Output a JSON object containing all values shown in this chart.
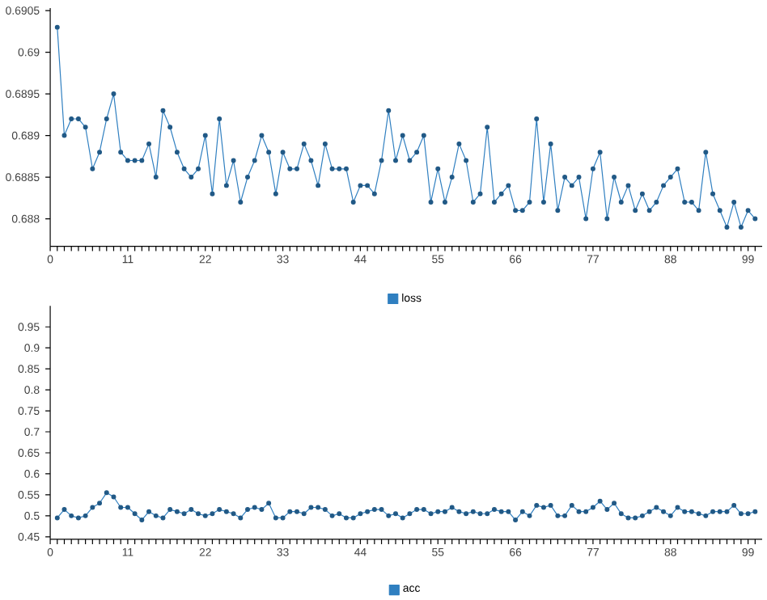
{
  "chart_data": [
    {
      "type": "line",
      "x": [
        1,
        2,
        3,
        4,
        5,
        6,
        7,
        8,
        9,
        10,
        11,
        12,
        13,
        14,
        15,
        16,
        17,
        18,
        19,
        20,
        21,
        22,
        23,
        24,
        25,
        26,
        27,
        28,
        29,
        30,
        31,
        32,
        33,
        34,
        35,
        36,
        37,
        38,
        39,
        40,
        41,
        42,
        43,
        44,
        45,
        46,
        47,
        48,
        49,
        50,
        51,
        52,
        53,
        54,
        55,
        56,
        57,
        58,
        59,
        60,
        61,
        62,
        63,
        64,
        65,
        66,
        67,
        68,
        69,
        70,
        71,
        72,
        73,
        74,
        75,
        76,
        77,
        78,
        79,
        80,
        81,
        82,
        83,
        84,
        85,
        86,
        87,
        88,
        89,
        90,
        91,
        92,
        93,
        94,
        95,
        96,
        97,
        98,
        99,
        100
      ],
      "series": [
        {
          "name": "loss",
          "color": "#2f7fc0",
          "values": [
            0.6903,
            0.689,
            0.6892,
            0.6892,
            0.6891,
            0.6886,
            0.6888,
            0.6892,
            0.6895,
            0.6888,
            0.6887,
            0.6887,
            0.6887,
            0.6889,
            0.6885,
            0.6893,
            0.6891,
            0.6888,
            0.6886,
            0.6885,
            0.6886,
            0.689,
            0.6883,
            0.6892,
            0.6884,
            0.6887,
            0.6882,
            0.6885,
            0.6887,
            0.689,
            0.6888,
            0.6883,
            0.6888,
            0.6886,
            0.6886,
            0.6889,
            0.6887,
            0.6884,
            0.6889,
            0.6886,
            0.6886,
            0.6886,
            0.6882,
            0.6884,
            0.6884,
            0.6883,
            0.6887,
            0.6893,
            0.6887,
            0.689,
            0.6887,
            0.6888,
            0.689,
            0.6882,
            0.6886,
            0.6882,
            0.6885,
            0.6889,
            0.6887,
            0.6882,
            0.6883,
            0.6891,
            0.6882,
            0.6883,
            0.6884,
            0.6881,
            0.6881,
            0.6882,
            0.6892,
            0.6882,
            0.6889,
            0.6881,
            0.6885,
            0.6884,
            0.6885,
            0.688,
            0.6886,
            0.6888,
            0.688,
            0.6885,
            0.6882,
            0.6884,
            0.6881,
            0.6883,
            0.6881,
            0.6882,
            0.6884,
            0.6885,
            0.6886,
            0.6882,
            0.6882,
            0.6881,
            0.6888,
            0.6883,
            0.6881,
            0.6879,
            0.6882,
            0.6879,
            0.6881,
            0.688
          ]
        }
      ],
      "xlim": [
        0,
        101
      ],
      "ylim": [
        0.68767,
        0.69053
      ],
      "xticks": [
        0,
        {
          "value": 1,
          "label": null
        },
        {
          "value": 2,
          "label": null
        },
        {
          "value": 3,
          "label": null
        },
        {
          "value": 4,
          "label": null
        },
        {
          "value": 5,
          "label": null
        },
        {
          "value": 6,
          "label": null
        },
        {
          "value": 7,
          "label": null
        },
        {
          "value": 8,
          "label": null
        },
        {
          "value": 9,
          "label": null
        },
        {
          "value": 10,
          "label": null
        },
        11,
        {
          "value": 12,
          "label": null
        },
        {
          "value": 13,
          "label": null
        },
        {
          "value": 14,
          "label": null
        },
        {
          "value": 15,
          "label": null
        },
        {
          "value": 16,
          "label": null
        },
        {
          "value": 17,
          "label": null
        },
        {
          "value": 18,
          "label": null
        },
        {
          "value": 19,
          "label": null
        },
        {
          "value": 20,
          "label": null
        },
        {
          "value": 21,
          "label": null
        },
        22,
        {
          "value": 23,
          "label": null
        },
        {
          "value": 24,
          "label": null
        },
        {
          "value": 25,
          "label": null
        },
        {
          "value": 26,
          "label": null
        },
        {
          "value": 27,
          "label": null
        },
        {
          "value": 28,
          "label": null
        },
        {
          "value": 29,
          "label": null
        },
        {
          "value": 30,
          "label": null
        },
        {
          "value": 31,
          "label": null
        },
        {
          "value": 32,
          "label": null
        },
        33,
        {
          "value": 34,
          "label": null
        },
        {
          "value": 35,
          "label": null
        },
        {
          "value": 36,
          "label": null
        },
        {
          "value": 37,
          "label": null
        },
        {
          "value": 38,
          "label": null
        },
        {
          "value": 39,
          "label": null
        },
        {
          "value": 40,
          "label": null
        },
        {
          "value": 41,
          "label": null
        },
        {
          "value": 42,
          "label": null
        },
        {
          "value": 43,
          "label": null
        },
        44,
        {
          "value": 45,
          "label": null
        },
        {
          "value": 46,
          "label": null
        },
        {
          "value": 47,
          "label": null
        },
        {
          "value": 48,
          "label": null
        },
        {
          "value": 49,
          "label": null
        },
        {
          "value": 50,
          "label": null
        },
        {
          "value": 51,
          "label": null
        },
        {
          "value": 52,
          "label": null
        },
        {
          "value": 53,
          "label": null
        },
        {
          "value": 54,
          "label": null
        },
        55,
        {
          "value": 56,
          "label": null
        },
        {
          "value": 57,
          "label": null
        },
        {
          "value": 58,
          "label": null
        },
        {
          "value": 59,
          "label": null
        },
        {
          "value": 60,
          "label": null
        },
        {
          "value": 61,
          "label": null
        },
        {
          "value": 62,
          "label": null
        },
        {
          "value": 63,
          "label": null
        },
        {
          "value": 64,
          "label": null
        },
        {
          "value": 65,
          "label": null
        },
        66,
        {
          "value": 67,
          "label": null
        },
        {
          "value": 68,
          "label": null
        },
        {
          "value": 69,
          "label": null
        },
        {
          "value": 70,
          "label": null
        },
        {
          "value": 71,
          "label": null
        },
        {
          "value": 72,
          "label": null
        },
        {
          "value": 73,
          "label": null
        },
        {
          "value": 74,
          "label": null
        },
        {
          "value": 75,
          "label": null
        },
        {
          "value": 76,
          "label": null
        },
        77,
        {
          "value": 78,
          "label": null
        },
        {
          "value": 79,
          "label": null
        },
        {
          "value": 80,
          "label": null
        },
        {
          "value": 81,
          "label": null
        },
        {
          "value": 82,
          "label": null
        },
        {
          "value": 83,
          "label": null
        },
        {
          "value": 84,
          "label": null
        },
        {
          "value": 85,
          "label": null
        },
        {
          "value": 86,
          "label": null
        },
        {
          "value": 87,
          "label": null
        },
        88,
        {
          "value": 89,
          "label": null
        },
        {
          "value": 90,
          "label": null
        },
        {
          "value": 91,
          "label": null
        },
        {
          "value": 92,
          "label": null
        },
        {
          "value": 93,
          "label": null
        },
        {
          "value": 94,
          "label": null
        },
        {
          "value": 95,
          "label": null
        },
        {
          "value": 96,
          "label": null
        },
        {
          "value": 97,
          "label": null
        },
        {
          "value": 98,
          "label": null
        },
        99,
        {
          "value": 100,
          "label": null
        }
      ],
      "yticks": [
        0.688,
        0.6885,
        0.689,
        0.6895,
        0.69,
        0.6905
      ],
      "legend": "bottom",
      "marker": "circle",
      "grid": false
    },
    {
      "type": "line",
      "x": [
        1,
        2,
        3,
        4,
        5,
        6,
        7,
        8,
        9,
        10,
        11,
        12,
        13,
        14,
        15,
        16,
        17,
        18,
        19,
        20,
        21,
        22,
        23,
        24,
        25,
        26,
        27,
        28,
        29,
        30,
        31,
        32,
        33,
        34,
        35,
        36,
        37,
        38,
        39,
        40,
        41,
        42,
        43,
        44,
        45,
        46,
        47,
        48,
        49,
        50,
        51,
        52,
        53,
        54,
        55,
        56,
        57,
        58,
        59,
        60,
        61,
        62,
        63,
        64,
        65,
        66,
        67,
        68,
        69,
        70,
        71,
        72,
        73,
        74,
        75,
        76,
        77,
        78,
        79,
        80,
        81,
        82,
        83,
        84,
        85,
        86,
        87,
        88,
        89,
        90,
        91,
        92,
        93,
        94,
        95,
        96,
        97,
        98,
        99,
        100
      ],
      "series": [
        {
          "name": "acc",
          "color": "#2f7fc0",
          "values": [
            0.495,
            0.515,
            0.5,
            0.495,
            0.5,
            0.52,
            0.53,
            0.555,
            0.545,
            0.52,
            0.52,
            0.505,
            0.49,
            0.51,
            0.5,
            0.495,
            0.515,
            0.51,
            0.505,
            0.515,
            0.505,
            0.5,
            0.505,
            0.515,
            0.51,
            0.505,
            0.495,
            0.515,
            0.52,
            0.515,
            0.53,
            0.495,
            0.495,
            0.51,
            0.51,
            0.505,
            0.52,
            0.52,
            0.515,
            0.5,
            0.505,
            0.495,
            0.495,
            0.505,
            0.51,
            0.515,
            0.515,
            0.5,
            0.505,
            0.495,
            0.505,
            0.515,
            0.515,
            0.505,
            0.51,
            0.51,
            0.52,
            0.51,
            0.505,
            0.51,
            0.505,
            0.505,
            0.515,
            0.51,
            0.51,
            0.49,
            0.51,
            0.5,
            0.525,
            0.52,
            0.525,
            0.5,
            0.5,
            0.525,
            0.51,
            0.51,
            0.52,
            0.535,
            0.515,
            0.53,
            0.505,
            0.495,
            0.495,
            0.5,
            0.51,
            0.52,
            0.51,
            0.5,
            0.52,
            0.51,
            0.51,
            0.505,
            0.5,
            0.51,
            0.51,
            0.51,
            0.525,
            0.505,
            0.505,
            0.51
          ]
        }
      ],
      "xlim": [
        0,
        101
      ],
      "ylim": [
        0.444,
        1.0
      ],
      "xticks": [
        0,
        {
          "value": 1,
          "label": null
        },
        {
          "value": 2,
          "label": null
        },
        {
          "value": 3,
          "label": null
        },
        {
          "value": 4,
          "label": null
        },
        {
          "value": 5,
          "label": null
        },
        {
          "value": 6,
          "label": null
        },
        {
          "value": 7,
          "label": null
        },
        {
          "value": 8,
          "label": null
        },
        {
          "value": 9,
          "label": null
        },
        {
          "value": 10,
          "label": null
        },
        11,
        {
          "value": 12,
          "label": null
        },
        {
          "value": 13,
          "label": null
        },
        {
          "value": 14,
          "label": null
        },
        {
          "value": 15,
          "label": null
        },
        {
          "value": 16,
          "label": null
        },
        {
          "value": 17,
          "label": null
        },
        {
          "value": 18,
          "label": null
        },
        {
          "value": 19,
          "label": null
        },
        {
          "value": 20,
          "label": null
        },
        {
          "value": 21,
          "label": null
        },
        22,
        {
          "value": 23,
          "label": null
        },
        {
          "value": 24,
          "label": null
        },
        {
          "value": 25,
          "label": null
        },
        {
          "value": 26,
          "label": null
        },
        {
          "value": 27,
          "label": null
        },
        {
          "value": 28,
          "label": null
        },
        {
          "value": 29,
          "label": null
        },
        {
          "value": 30,
          "label": null
        },
        {
          "value": 31,
          "label": null
        },
        {
          "value": 32,
          "label": null
        },
        33,
        {
          "value": 34,
          "label": null
        },
        {
          "value": 35,
          "label": null
        },
        {
          "value": 36,
          "label": null
        },
        {
          "value": 37,
          "label": null
        },
        {
          "value": 38,
          "label": null
        },
        {
          "value": 39,
          "label": null
        },
        {
          "value": 40,
          "label": null
        },
        {
          "value": 41,
          "label": null
        },
        {
          "value": 42,
          "label": null
        },
        {
          "value": 43,
          "label": null
        },
        44,
        {
          "value": 45,
          "label": null
        },
        {
          "value": 46,
          "label": null
        },
        {
          "value": 47,
          "label": null
        },
        {
          "value": 48,
          "label": null
        },
        {
          "value": 49,
          "label": null
        },
        {
          "value": 50,
          "label": null
        },
        {
          "value": 51,
          "label": null
        },
        {
          "value": 52,
          "label": null
        },
        {
          "value": 53,
          "label": null
        },
        {
          "value": 54,
          "label": null
        },
        55,
        {
          "value": 56,
          "label": null
        },
        {
          "value": 57,
          "label": null
        },
        {
          "value": 58,
          "label": null
        },
        {
          "value": 59,
          "label": null
        },
        {
          "value": 60,
          "label": null
        },
        {
          "value": 61,
          "label": null
        },
        {
          "value": 62,
          "label": null
        },
        {
          "value": 63,
          "label": null
        },
        {
          "value": 64,
          "label": null
        },
        {
          "value": 65,
          "label": null
        },
        66,
        {
          "value": 67,
          "label": null
        },
        {
          "value": 68,
          "label": null
        },
        {
          "value": 69,
          "label": null
        },
        {
          "value": 70,
          "label": null
        },
        {
          "value": 71,
          "label": null
        },
        {
          "value": 72,
          "label": null
        },
        {
          "value": 73,
          "label": null
        },
        {
          "value": 74,
          "label": null
        },
        {
          "value": 75,
          "label": null
        },
        {
          "value": 76,
          "label": null
        },
        77,
        {
          "value": 78,
          "label": null
        },
        {
          "value": 79,
          "label": null
        },
        {
          "value": 80,
          "label": null
        },
        {
          "value": 81,
          "label": null
        },
        {
          "value": 82,
          "label": null
        },
        {
          "value": 83,
          "label": null
        },
        {
          "value": 84,
          "label": null
        },
        {
          "value": 85,
          "label": null
        },
        {
          "value": 86,
          "label": null
        },
        {
          "value": 87,
          "label": null
        },
        88,
        {
          "value": 89,
          "label": null
        },
        {
          "value": 90,
          "label": null
        },
        {
          "value": 91,
          "label": null
        },
        {
          "value": 92,
          "label": null
        },
        {
          "value": 93,
          "label": null
        },
        {
          "value": 94,
          "label": null
        },
        {
          "value": 95,
          "label": null
        },
        {
          "value": 96,
          "label": null
        },
        {
          "value": 97,
          "label": null
        },
        {
          "value": 98,
          "label": null
        },
        99,
        {
          "value": 100,
          "label": null
        }
      ],
      "yticks": [
        0.45,
        0.5,
        0.55,
        0.6,
        0.65,
        0.7,
        0.75,
        0.8,
        0.85,
        0.9,
        0.95
      ],
      "legend": "bottom",
      "marker": "circle",
      "grid": false
    }
  ]
}
